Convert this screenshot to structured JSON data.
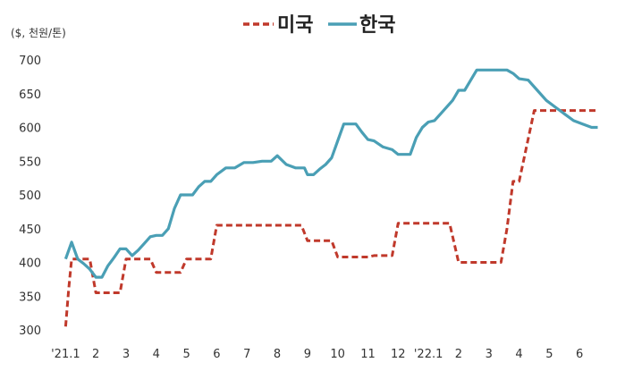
{
  "chart_data": {
    "type": "line",
    "unit_label": "($, 천원/톤)",
    "title": "",
    "xlabel": "",
    "ylabel": "",
    "ylim": [
      300,
      700
    ],
    "y_ticks": [
      300,
      350,
      400,
      450,
      500,
      550,
      600,
      650,
      700
    ],
    "x_tick_labels": [
      "'21.1",
      "2",
      "3",
      "4",
      "5",
      "6",
      "7",
      "8",
      "9",
      "10",
      "11",
      "12",
      "'22.1",
      "2",
      "3",
      "4",
      "5",
      "6"
    ],
    "x_tick_positions": [
      0,
      1,
      2,
      3,
      4,
      5,
      6,
      7,
      8,
      9,
      10,
      11,
      12,
      13,
      14,
      15,
      16,
      17
    ],
    "x_range": [
      -0.1,
      18.0
    ],
    "grid": false,
    "legend_position": "top-center",
    "series": [
      {
        "name": "미국",
        "style": "dashed",
        "color": "#c0392b",
        "x": [
          0,
          0.1,
          0.2,
          0.5,
          0.8,
          1.0,
          1.2,
          1.5,
          1.8,
          2.0,
          2.2,
          2.5,
          2.8,
          3.0,
          3.2,
          3.5,
          3.8,
          4.0,
          4.2,
          4.5,
          4.8,
          5.0,
          5.2,
          5.5,
          5.8,
          6.0,
          6.5,
          7.0,
          7.5,
          7.8,
          8.0,
          8.2,
          8.5,
          8.8,
          9.0,
          9.5,
          10.0,
          10.2,
          10.4,
          10.6,
          10.8,
          11.0,
          11.5,
          12.0,
          12.3,
          12.5,
          12.7,
          13.0,
          13.5,
          14.0,
          14.2,
          14.4,
          14.6,
          14.8,
          15.0,
          15.5,
          16.0,
          16.5,
          17.0,
          17.3,
          17.6
        ],
        "values": [
          305,
          360,
          405,
          405,
          405,
          355,
          355,
          355,
          355,
          405,
          405,
          405,
          405,
          385,
          385,
          385,
          385,
          405,
          405,
          405,
          405,
          455,
          455,
          455,
          455,
          455,
          455,
          455,
          455,
          455,
          432,
          432,
          432,
          432,
          408,
          408,
          408,
          410,
          410,
          410,
          410,
          458,
          458,
          458,
          458,
          458,
          458,
          400,
          400,
          400,
          400,
          400,
          450,
          520,
          520,
          625,
          625,
          625,
          625,
          625,
          625
        ]
      },
      {
        "name": "한국",
        "style": "solid",
        "color": "#4a9fb5",
        "x": [
          0,
          0.2,
          0.4,
          0.6,
          0.8,
          1.0,
          1.2,
          1.4,
          1.6,
          1.8,
          2.0,
          2.2,
          2.4,
          2.6,
          2.8,
          3.0,
          3.2,
          3.4,
          3.6,
          3.8,
          4.0,
          4.2,
          4.4,
          4.6,
          4.8,
          5.0,
          5.3,
          5.6,
          5.9,
          6.2,
          6.5,
          6.8,
          7.0,
          7.3,
          7.6,
          7.9,
          8.0,
          8.2,
          8.4,
          8.6,
          8.8,
          9.0,
          9.2,
          9.4,
          9.6,
          9.8,
          10.0,
          10.2,
          10.5,
          10.8,
          11.0,
          11.2,
          11.4,
          11.6,
          11.8,
          12.0,
          12.2,
          12.4,
          12.6,
          12.8,
          13.0,
          13.2,
          13.4,
          13.6,
          13.8,
          14.0,
          14.2,
          14.4,
          14.6,
          14.8,
          15.0,
          15.3,
          15.6,
          15.9,
          16.2,
          16.5,
          16.8,
          17.1,
          17.4,
          17.6
        ],
        "values": [
          405,
          430,
          405,
          398,
          390,
          378,
          378,
          395,
          407,
          420,
          420,
          410,
          418,
          428,
          438,
          440,
          440,
          450,
          480,
          500,
          500,
          500,
          512,
          520,
          520,
          530,
          540,
          540,
          548,
          548,
          550,
          550,
          558,
          545,
          540,
          540,
          530,
          530,
          538,
          545,
          555,
          580,
          605,
          605,
          605,
          593,
          582,
          580,
          571,
          567,
          560,
          560,
          560,
          585,
          600,
          608,
          610,
          620,
          630,
          640,
          655,
          655,
          670,
          685,
          685,
          685,
          685,
          685,
          685,
          680,
          672,
          670,
          655,
          640,
          630,
          620,
          610,
          605,
          600,
          600
        ]
      }
    ]
  }
}
